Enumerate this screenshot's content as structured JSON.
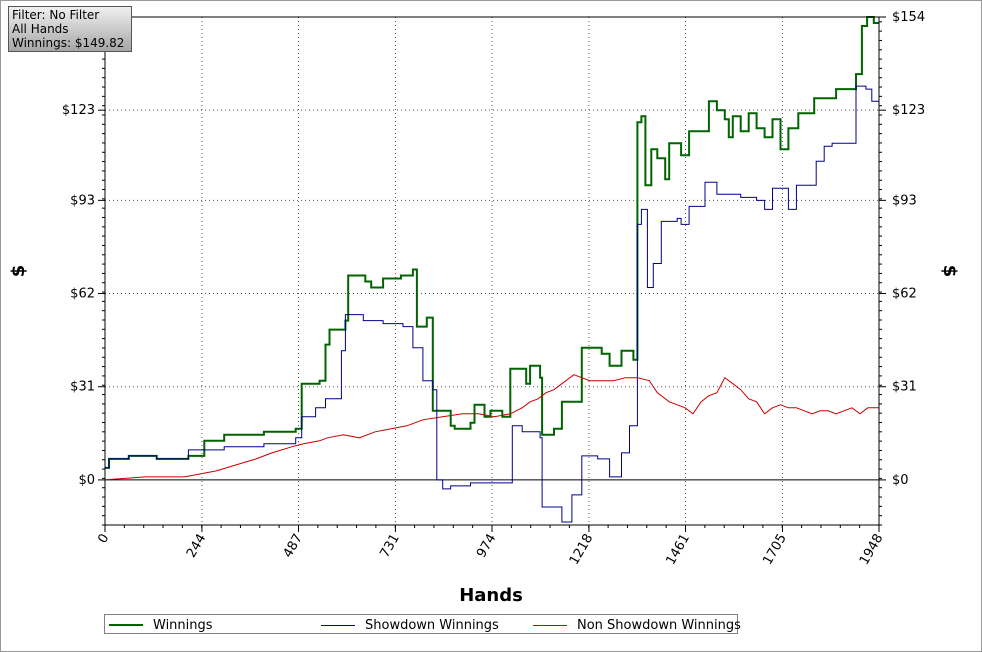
{
  "filter": {
    "line1": "Filter: No Filter",
    "line2": "All Hands",
    "line3": "Winnings: $149.82"
  },
  "chart_data": {
    "type": "line",
    "xlabel": "Hands",
    "ylabel_left": "$",
    "ylabel_right": "$",
    "xlim": [
      0,
      1948
    ],
    "ylim": [
      -15,
      154
    ],
    "x_ticks": [
      "0",
      "244",
      "487",
      "731",
      "974",
      "1218",
      "1461",
      "1705",
      "1948"
    ],
    "y_ticks": [
      "$0",
      "$31",
      "$62",
      "$93",
      "$123",
      "$154"
    ],
    "y_tick_values": [
      0,
      31,
      62,
      93,
      123,
      154
    ],
    "grid": true,
    "legend_position": "bottom",
    "series": [
      {
        "name": "Winnings",
        "color": "#006400",
        "points": [
          [
            0,
            4
          ],
          [
            10,
            4
          ],
          [
            10,
            7
          ],
          [
            60,
            7
          ],
          [
            60,
            8
          ],
          [
            130,
            8
          ],
          [
            130,
            7
          ],
          [
            210,
            7
          ],
          [
            210,
            8
          ],
          [
            250,
            8
          ],
          [
            250,
            13
          ],
          [
            300,
            13
          ],
          [
            300,
            15
          ],
          [
            400,
            15
          ],
          [
            400,
            16
          ],
          [
            480,
            16
          ],
          [
            480,
            17
          ],
          [
            495,
            17
          ],
          [
            495,
            32
          ],
          [
            540,
            32
          ],
          [
            540,
            33
          ],
          [
            555,
            33
          ],
          [
            555,
            45
          ],
          [
            565,
            45
          ],
          [
            565,
            50
          ],
          [
            605,
            50
          ],
          [
            605,
            53
          ],
          [
            612,
            53
          ],
          [
            612,
            68
          ],
          [
            655,
            68
          ],
          [
            655,
            66
          ],
          [
            670,
            66
          ],
          [
            670,
            64
          ],
          [
            700,
            64
          ],
          [
            700,
            67
          ],
          [
            745,
            67
          ],
          [
            745,
            68
          ],
          [
            775,
            68
          ],
          [
            775,
            70
          ],
          [
            785,
            70
          ],
          [
            785,
            51
          ],
          [
            810,
            51
          ],
          [
            810,
            54
          ],
          [
            825,
            54
          ],
          [
            825,
            23
          ],
          [
            870,
            23
          ],
          [
            870,
            18
          ],
          [
            880,
            18
          ],
          [
            880,
            17
          ],
          [
            920,
            17
          ],
          [
            920,
            19
          ],
          [
            930,
            19
          ],
          [
            930,
            25
          ],
          [
            955,
            25
          ],
          [
            955,
            21
          ],
          [
            970,
            21
          ],
          [
            970,
            23
          ],
          [
            1000,
            23
          ],
          [
            1000,
            21
          ],
          [
            1020,
            21
          ],
          [
            1020,
            37
          ],
          [
            1060,
            37
          ],
          [
            1060,
            32
          ],
          [
            1070,
            32
          ],
          [
            1070,
            38
          ],
          [
            1095,
            38
          ],
          [
            1095,
            34
          ],
          [
            1100,
            34
          ],
          [
            1100,
            15
          ],
          [
            1130,
            15
          ],
          [
            1130,
            17
          ],
          [
            1150,
            17
          ],
          [
            1150,
            26
          ],
          [
            1200,
            26
          ],
          [
            1200,
            44
          ],
          [
            1250,
            44
          ],
          [
            1250,
            42
          ],
          [
            1270,
            42
          ],
          [
            1270,
            38
          ],
          [
            1300,
            38
          ],
          [
            1300,
            43
          ],
          [
            1330,
            43
          ],
          [
            1330,
            40
          ],
          [
            1340,
            40
          ],
          [
            1340,
            119
          ],
          [
            1350,
            119
          ],
          [
            1350,
            121
          ],
          [
            1360,
            121
          ],
          [
            1360,
            98
          ],
          [
            1375,
            98
          ],
          [
            1375,
            110
          ],
          [
            1390,
            110
          ],
          [
            1390,
            107
          ],
          [
            1410,
            107
          ],
          [
            1410,
            100
          ],
          [
            1420,
            100
          ],
          [
            1420,
            112
          ],
          [
            1450,
            112
          ],
          [
            1450,
            108
          ],
          [
            1470,
            108
          ],
          [
            1470,
            116
          ],
          [
            1520,
            116
          ],
          [
            1520,
            126
          ],
          [
            1540,
            126
          ],
          [
            1540,
            123
          ],
          [
            1560,
            123
          ],
          [
            1560,
            120
          ],
          [
            1570,
            120
          ],
          [
            1570,
            114
          ],
          [
            1580,
            114
          ],
          [
            1580,
            121
          ],
          [
            1600,
            121
          ],
          [
            1600,
            116
          ],
          [
            1620,
            116
          ],
          [
            1620,
            122
          ],
          [
            1640,
            122
          ],
          [
            1640,
            117
          ],
          [
            1660,
            117
          ],
          [
            1660,
            114
          ],
          [
            1680,
            114
          ],
          [
            1680,
            120
          ],
          [
            1700,
            120
          ],
          [
            1700,
            110
          ],
          [
            1720,
            110
          ],
          [
            1720,
            117
          ],
          [
            1745,
            117
          ],
          [
            1745,
            122
          ],
          [
            1785,
            122
          ],
          [
            1785,
            127
          ],
          [
            1840,
            127
          ],
          [
            1840,
            130
          ],
          [
            1890,
            130
          ],
          [
            1890,
            135
          ],
          [
            1905,
            135
          ],
          [
            1905,
            151
          ],
          [
            1918,
            151
          ],
          [
            1918,
            154
          ],
          [
            1935,
            154
          ],
          [
            1935,
            152
          ],
          [
            1948,
            152
          ]
        ]
      },
      {
        "name": "Showdown Winnings",
        "color": "#00008b",
        "points": [
          [
            0,
            4
          ],
          [
            10,
            4
          ],
          [
            10,
            7
          ],
          [
            60,
            7
          ],
          [
            60,
            8
          ],
          [
            130,
            8
          ],
          [
            130,
            7
          ],
          [
            210,
            7
          ],
          [
            210,
            10
          ],
          [
            300,
            10
          ],
          [
            300,
            11
          ],
          [
            400,
            11
          ],
          [
            400,
            12
          ],
          [
            480,
            12
          ],
          [
            480,
            14
          ],
          [
            495,
            14
          ],
          [
            495,
            21
          ],
          [
            530,
            21
          ],
          [
            530,
            24
          ],
          [
            555,
            24
          ],
          [
            555,
            27
          ],
          [
            595,
            27
          ],
          [
            595,
            43
          ],
          [
            605,
            43
          ],
          [
            605,
            55
          ],
          [
            650,
            55
          ],
          [
            650,
            53
          ],
          [
            700,
            53
          ],
          [
            700,
            52
          ],
          [
            750,
            52
          ],
          [
            750,
            51
          ],
          [
            775,
            51
          ],
          [
            775,
            44
          ],
          [
            800,
            44
          ],
          [
            800,
            33
          ],
          [
            825,
            33
          ],
          [
            825,
            30
          ],
          [
            835,
            30
          ],
          [
            835,
            0
          ],
          [
            850,
            0
          ],
          [
            850,
            -3
          ],
          [
            870,
            -3
          ],
          [
            870,
            -2
          ],
          [
            900,
            -2
          ],
          [
            900,
            -2
          ],
          [
            920,
            -2
          ],
          [
            920,
            -1
          ],
          [
            940,
            -1
          ],
          [
            940,
            -1
          ],
          [
            960,
            -1
          ],
          [
            960,
            -1
          ],
          [
            1025,
            -1
          ],
          [
            1025,
            18
          ],
          [
            1050,
            18
          ],
          [
            1050,
            16
          ],
          [
            1095,
            16
          ],
          [
            1095,
            14
          ],
          [
            1100,
            14
          ],
          [
            1100,
            -9
          ],
          [
            1150,
            -9
          ],
          [
            1150,
            -14
          ],
          [
            1175,
            -14
          ],
          [
            1175,
            -5
          ],
          [
            1200,
            -5
          ],
          [
            1200,
            8
          ],
          [
            1240,
            8
          ],
          [
            1240,
            7
          ],
          [
            1270,
            7
          ],
          [
            1270,
            1
          ],
          [
            1300,
            1
          ],
          [
            1300,
            9
          ],
          [
            1320,
            9
          ],
          [
            1320,
            18
          ],
          [
            1340,
            18
          ],
          [
            1340,
            85
          ],
          [
            1350,
            85
          ],
          [
            1350,
            90
          ],
          [
            1365,
            90
          ],
          [
            1365,
            64
          ],
          [
            1380,
            64
          ],
          [
            1380,
            72
          ],
          [
            1400,
            72
          ],
          [
            1400,
            86
          ],
          [
            1440,
            86
          ],
          [
            1440,
            87
          ],
          [
            1450,
            87
          ],
          [
            1450,
            85
          ],
          [
            1470,
            85
          ],
          [
            1470,
            91
          ],
          [
            1510,
            91
          ],
          [
            1510,
            99
          ],
          [
            1540,
            99
          ],
          [
            1540,
            95
          ],
          [
            1600,
            95
          ],
          [
            1600,
            94
          ],
          [
            1640,
            94
          ],
          [
            1640,
            93
          ],
          [
            1660,
            93
          ],
          [
            1660,
            90
          ],
          [
            1680,
            90
          ],
          [
            1680,
            97
          ],
          [
            1720,
            97
          ],
          [
            1720,
            90
          ],
          [
            1740,
            90
          ],
          [
            1740,
            98
          ],
          [
            1790,
            98
          ],
          [
            1790,
            106
          ],
          [
            1810,
            106
          ],
          [
            1810,
            111
          ],
          [
            1830,
            111
          ],
          [
            1830,
            112
          ],
          [
            1890,
            112
          ],
          [
            1890,
            131
          ],
          [
            1915,
            131
          ],
          [
            1915,
            130
          ],
          [
            1930,
            130
          ],
          [
            1930,
            126
          ],
          [
            1948,
            126
          ]
        ]
      },
      {
        "name": "Non Showdown Winnings",
        "color": "#c80000",
        "points": [
          [
            0,
            0
          ],
          [
            100,
            1
          ],
          [
            200,
            1
          ],
          [
            240,
            2
          ],
          [
            280,
            3
          ],
          [
            330,
            5
          ],
          [
            380,
            7
          ],
          [
            420,
            9
          ],
          [
            470,
            11
          ],
          [
            500,
            12
          ],
          [
            540,
            13
          ],
          [
            560,
            14
          ],
          [
            600,
            15
          ],
          [
            640,
            14
          ],
          [
            680,
            16
          ],
          [
            720,
            17
          ],
          [
            760,
            18
          ],
          [
            800,
            20
          ],
          [
            850,
            21
          ],
          [
            900,
            22
          ],
          [
            940,
            22
          ],
          [
            980,
            21
          ],
          [
            1020,
            22
          ],
          [
            1050,
            24
          ],
          [
            1070,
            26
          ],
          [
            1090,
            27
          ],
          [
            1110,
            29
          ],
          [
            1130,
            30
          ],
          [
            1150,
            32
          ],
          [
            1180,
            35
          ],
          [
            1200,
            34
          ],
          [
            1220,
            33
          ],
          [
            1250,
            33
          ],
          [
            1280,
            33
          ],
          [
            1310,
            34
          ],
          [
            1340,
            34
          ],
          [
            1370,
            33
          ],
          [
            1390,
            29
          ],
          [
            1420,
            26
          ],
          [
            1440,
            25
          ],
          [
            1460,
            24
          ],
          [
            1480,
            22
          ],
          [
            1500,
            26
          ],
          [
            1520,
            28
          ],
          [
            1540,
            29
          ],
          [
            1560,
            34
          ],
          [
            1580,
            32
          ],
          [
            1600,
            30
          ],
          [
            1620,
            27
          ],
          [
            1640,
            26
          ],
          [
            1660,
            22
          ],
          [
            1680,
            24
          ],
          [
            1700,
            25
          ],
          [
            1720,
            24
          ],
          [
            1740,
            24
          ],
          [
            1760,
            23
          ],
          [
            1780,
            22
          ],
          [
            1800,
            23
          ],
          [
            1820,
            23
          ],
          [
            1840,
            22
          ],
          [
            1860,
            23
          ],
          [
            1880,
            24
          ],
          [
            1900,
            22
          ],
          [
            1920,
            24
          ],
          [
            1948,
            24
          ]
        ]
      }
    ]
  }
}
